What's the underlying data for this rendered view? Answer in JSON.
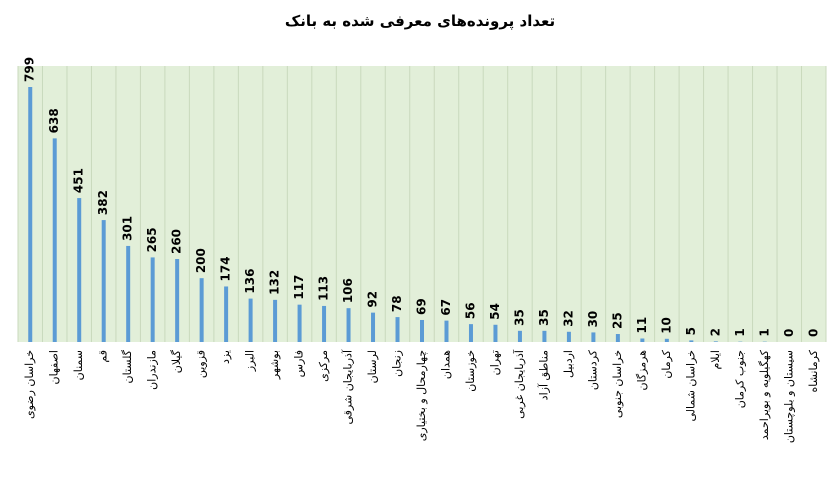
{
  "chart_data": {
    "type": "bar",
    "title": "تعداد پرونده‌های معرفی شده به بانک",
    "categories": [
      "خراسان رضوی",
      "اصفهان",
      "سمنان",
      "قم",
      "گلستان",
      "مازندران",
      "گیلان",
      "قزوین",
      "یزد",
      "البرز",
      "بوشهر",
      "فارس",
      "مرکزی",
      "آذربایجان شرقی",
      "لرستان",
      "زنجان",
      "چهارمحال و بختیاری",
      "همدان",
      "خوزستان",
      "تهران",
      "آذربایجان غربی",
      "مناطق آزاد",
      "اردبیل",
      "کردستان",
      "خراسان جنوبی",
      "هرمزگان",
      "کرمان",
      "خراسان شمالی",
      "ایلام",
      "جنوب کرمان",
      "کهگیلویه و بویراحمد",
      "سیستان و بلوچستان",
      "کرمانشاه"
    ],
    "values": [
      799,
      638,
      451,
      382,
      301,
      265,
      260,
      200,
      174,
      136,
      132,
      117,
      113,
      106,
      92,
      78,
      69,
      67,
      56,
      54,
      35,
      35,
      32,
      30,
      25,
      11,
      10,
      5,
      2,
      1,
      1,
      0,
      0
    ],
    "color": "#5b9bd5"
  }
}
